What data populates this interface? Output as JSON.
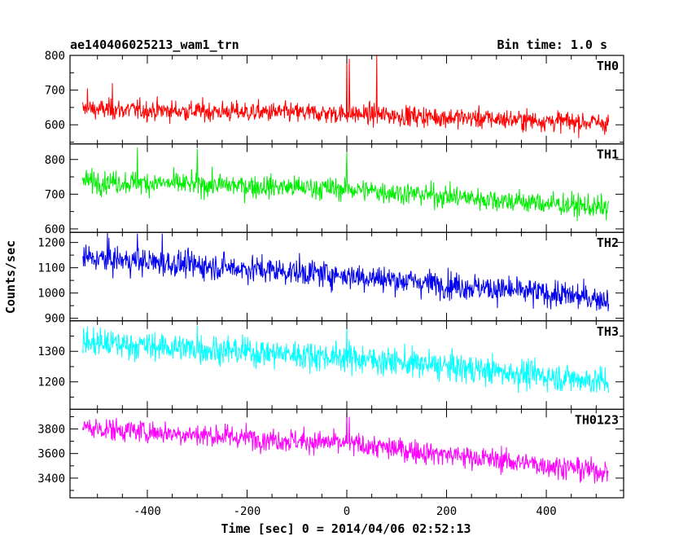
{
  "chart_data": {
    "type": "line",
    "title": "ae140406025213_wam1_trn",
    "subtitle": "Bin time: 1.0 s",
    "ylabel": "Counts/sec",
    "xlabel": "Time [sec] 0 = 2014/04/06 02:52:13",
    "xlim": [
      -555,
      555
    ],
    "xticks": [
      -400,
      -200,
      0,
      200,
      400
    ],
    "x_start": -530,
    "x_end": 525,
    "bin": 1.0,
    "panels": [
      {
        "name": "TH0",
        "color": "#ff0000",
        "ylim": [
          545,
          800
        ],
        "yticks": [
          600,
          700,
          800
        ],
        "trend": [
          [
            -530,
            645
          ],
          [
            0,
            632
          ],
          [
            525,
            605
          ]
        ],
        "noise": 25,
        "spikes": [
          [
            -520,
            705
          ],
          [
            -470,
            720
          ],
          [
            0,
            800
          ],
          [
            5,
            790
          ],
          [
            60,
            800
          ]
        ]
      },
      {
        "name": "TH1",
        "color": "#00ee00",
        "ylim": [
          590,
          845
        ],
        "yticks": [
          600,
          700,
          800
        ],
        "trend": [
          [
            -530,
            738
          ],
          [
            0,
            715
          ],
          [
            525,
            660
          ]
        ],
        "noise": 28,
        "spikes": [
          [
            -420,
            835
          ],
          [
            -300,
            830
          ],
          [
            0,
            820
          ]
        ]
      },
      {
        "name": "TH2",
        "color": "#0000ee",
        "ylim": [
          890,
          1240
        ],
        "yticks": [
          900,
          1000,
          1100,
          1200
        ],
        "trend": [
          [
            -530,
            1140
          ],
          [
            0,
            1070
          ],
          [
            525,
            975
          ]
        ],
        "noise": 45,
        "spikes": [
          [
            -480,
            1240
          ],
          [
            -420,
            1235
          ],
          [
            -370,
            1235
          ]
        ]
      },
      {
        "name": "TH3",
        "color": "#00ffff",
        "ylim": [
          1110,
          1400
        ],
        "yticks": [
          1200,
          1300
        ],
        "trend": [
          [
            -530,
            1330
          ],
          [
            0,
            1280
          ],
          [
            525,
            1200
          ]
        ],
        "noise": 40,
        "spikes": [
          [
            0,
            1395
          ],
          [
            -300,
            1385
          ]
        ]
      },
      {
        "name": "TH0123",
        "color": "#ff00ff",
        "ylim": [
          3240,
          3960
        ],
        "yticks": [
          3400,
          3600,
          3800
        ],
        "trend": [
          [
            -530,
            3810
          ],
          [
            0,
            3680
          ],
          [
            525,
            3450
          ]
        ],
        "noise": 80,
        "spikes": [
          [
            0,
            3955
          ],
          [
            5,
            3900
          ]
        ]
      }
    ]
  }
}
